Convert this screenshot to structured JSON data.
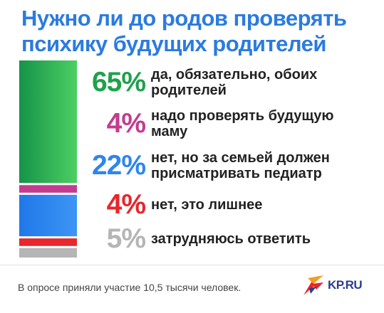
{
  "title": "Нужно ли до родов проверять психику будущих родителей",
  "chart_data": {
    "type": "bar",
    "stacked": true,
    "orientation": "vertical",
    "categories": [
      "да, обязательно, обоих родителей",
      "надо проверять будущую маму",
      "нет, но за семьей должен присматривать педиатр",
      "нет, это лишнее",
      "затрудняюсь ответить"
    ],
    "values": [
      65,
      4,
      22,
      4,
      5
    ],
    "labels": [
      "65%",
      "4%",
      "22%",
      "4%",
      "5%"
    ],
    "colors": [
      "#1ea14b",
      "#c23c8e",
      "#2d86ee",
      "#e8262b",
      "#b5b5b5"
    ],
    "unit": "%"
  },
  "footer": "В опросе приняли участие 10,5 тысячи человек.",
  "logo": {
    "text": "KP.RU",
    "icon": "kp-bird-logo-icon"
  }
}
